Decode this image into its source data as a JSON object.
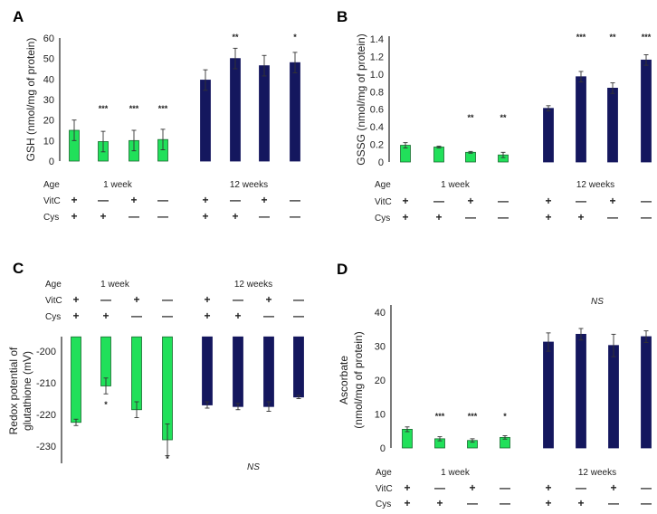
{
  "colors": {
    "week1": "#21e05a",
    "week1_border": "#1a6a30",
    "week12": "#14175e",
    "axis": "#222222"
  },
  "chart_data": [
    {
      "panel": "A",
      "type": "bar",
      "ylabel": [
        "GSH (nmol/mg of protein)"
      ],
      "ylim": [
        0,
        60
      ],
      "yticks": [
        0,
        10,
        20,
        30,
        40,
        50,
        60
      ],
      "ytick_labels": [
        "0",
        "10",
        "20",
        "30",
        "40",
        "50",
        "60"
      ],
      "rows": {
        "age_label": "Age",
        "vitc_label": "VitC",
        "cys_label": "Cys",
        "age_1": "1  week",
        "age_12": "12  weeks"
      },
      "vitc": [
        "+",
        "—",
        "+",
        "—",
        "+",
        "—",
        "+",
        "—"
      ],
      "cys": [
        "+",
        "+",
        "—",
        "—",
        "+",
        "+",
        "—",
        "—"
      ],
      "values": [
        15,
        9.5,
        10,
        10.5,
        39.5,
        50,
        46.5,
        48
      ],
      "errors": [
        5,
        5,
        5,
        5,
        5,
        5,
        5,
        5
      ],
      "significance": [
        "",
        "***",
        "***",
        "***",
        "",
        "**",
        "",
        "*"
      ],
      "ns_label": ""
    },
    {
      "panel": "B",
      "type": "bar",
      "ylabel": [
        "GSSG (nmol/mg of protein)"
      ],
      "ylim": [
        0,
        1.4
      ],
      "yticks": [
        0,
        0.2,
        0.4,
        0.6,
        0.8,
        1.0,
        1.2,
        1.4
      ],
      "ytick_labels": [
        "0",
        "0.2",
        "0.4",
        "0.6",
        "0.8",
        "1.0",
        "1.2",
        "1.4"
      ],
      "rows": {
        "age_label": "Age",
        "vitc_label": "VitC",
        "cys_label": "Cys",
        "age_1": "1  week",
        "age_12": "12  weeks"
      },
      "vitc": [
        "+",
        "—",
        "+",
        "—",
        "+",
        "—",
        "+",
        "—"
      ],
      "cys": [
        "+",
        "+",
        "—",
        "—",
        "+",
        "+",
        "—",
        "—"
      ],
      "values": [
        0.19,
        0.17,
        0.11,
        0.08,
        0.61,
        0.97,
        0.84,
        1.16
      ],
      "errors": [
        0.03,
        0.01,
        0.01,
        0.03,
        0.03,
        0.06,
        0.06,
        0.06
      ],
      "significance": [
        "",
        "",
        "**",
        "**",
        "",
        "***",
        "**",
        "***"
      ],
      "ns_label": ""
    },
    {
      "panel": "C",
      "type": "bar",
      "ylabel": [
        "Redox potential of",
        "glutathione (mV)"
      ],
      "ylim": [
        -235,
        -195.5
      ],
      "yticks": [
        -200,
        -210,
        -220,
        -230
      ],
      "ytick_labels": [
        "-200",
        "-210",
        "-220",
        "-230"
      ],
      "rows": {
        "age_label": "Age",
        "vitc_label": "VitC",
        "cys_label": "Cys",
        "age_1": "1  week",
        "age_12": "12  weeks"
      },
      "vitc": [
        "+",
        "—",
        "+",
        "—",
        "+",
        "—",
        "+",
        "—"
      ],
      "cys": [
        "+",
        "+",
        "—",
        "—",
        "+",
        "+",
        "—",
        "—"
      ],
      "values": [
        -222.5,
        -211,
        -218.5,
        -228,
        -217,
        -217.5,
        -217.5,
        -214.5
      ],
      "errors": [
        1,
        2.5,
        2.5,
        5,
        1,
        1,
        1.5,
        0.5
      ],
      "significance": [
        "",
        "*",
        "",
        "*",
        "",
        "",
        "",
        ""
      ],
      "ns_label": "NS"
    },
    {
      "panel": "D",
      "type": "bar",
      "ylabel": [
        "Ascorbate",
        "(nmol/mg of protein)"
      ],
      "ylim": [
        0,
        40
      ],
      "yticks": [
        0,
        10,
        20,
        30,
        40
      ],
      "ytick_labels": [
        "0",
        "10",
        "20",
        "30",
        "40"
      ],
      "rows": {
        "age_label": "Age",
        "vitc_label": "VitC",
        "cys_label": "Cys",
        "age_1": "1  week",
        "age_12": "12  weeks"
      },
      "vitc": [
        "+",
        "—",
        "+",
        "—",
        "+",
        "—",
        "+",
        "—"
      ],
      "cys": [
        "+",
        "+",
        "—",
        "—",
        "+",
        "+",
        "—",
        "—"
      ],
      "values": [
        5.5,
        2.7,
        2.2,
        3.1,
        31.2,
        33.5,
        30.2,
        32.8
      ],
      "errors": [
        0.7,
        0.6,
        0.5,
        0.5,
        2.7,
        1.7,
        3.3,
        1.7
      ],
      "significance": [
        "",
        "***",
        "***",
        "*",
        "",
        "",
        "",
        ""
      ],
      "ns_label": "NS"
    }
  ]
}
